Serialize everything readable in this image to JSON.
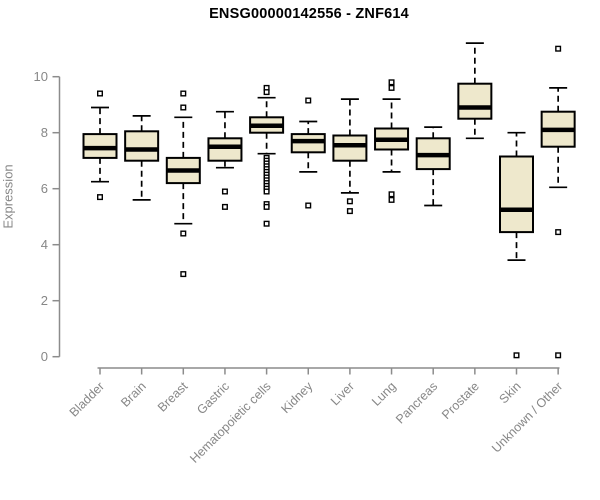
{
  "title": "ENSG00000142556 - ZNF614",
  "colors": {
    "background": "#FFFFFF",
    "box_fill": "#EEE8CC",
    "box_stroke": "#000000",
    "median": "#000000",
    "whisker": "#000000",
    "outlier": "#000000",
    "axis": "#8C8C8C",
    "text": "#878787",
    "title": "#000000"
  },
  "chart_data": {
    "type": "boxplot",
    "title": "ENSG00000142556 - ZNF614",
    "xlabel": "",
    "ylabel": "Expression",
    "ylim": [
      0,
      11.3
    ],
    "yticks": [
      0,
      2,
      4,
      6,
      8,
      10
    ],
    "grid": false,
    "legend": false,
    "marker": "open-square",
    "whisker_style": "dashed",
    "categories": [
      "Bladder",
      "Brain",
      "Breast",
      "Gastric",
      "Hematopoietic cells",
      "Kidney",
      "Liver",
      "Lung",
      "Pancreas",
      "Prostate",
      "Skin",
      "Unknown / Other"
    ],
    "series": [
      {
        "name": "Bladder",
        "whisker_low": 6.25,
        "q1": 7.1,
        "median": 7.45,
        "q3": 7.95,
        "whisker_high": 8.9,
        "outliers": [
          9.4,
          5.7
        ]
      },
      {
        "name": "Brain",
        "whisker_low": 5.6,
        "q1": 7.0,
        "median": 7.4,
        "q3": 8.05,
        "whisker_high": 8.6,
        "outliers": []
      },
      {
        "name": "Breast",
        "whisker_low": 4.75,
        "q1": 6.2,
        "median": 6.65,
        "q3": 7.1,
        "whisker_high": 8.55,
        "outliers": [
          9.4,
          8.9,
          4.4,
          2.95
        ]
      },
      {
        "name": "Gastric",
        "whisker_low": 6.75,
        "q1": 7.0,
        "median": 7.5,
        "q3": 7.8,
        "whisker_high": 8.75,
        "outliers": [
          5.9,
          5.35
        ]
      },
      {
        "name": "Hematopoietic cells",
        "whisker_low": 7.25,
        "q1": 8.0,
        "median": 8.25,
        "q3": 8.55,
        "whisker_high": 9.25,
        "outliers": [
          9.6,
          9.45,
          7.1,
          7.0,
          6.9,
          6.8,
          6.7,
          6.6,
          6.5,
          6.4,
          6.3,
          6.2,
          6.1,
          6.0,
          5.9,
          5.45,
          5.35,
          4.75
        ]
      },
      {
        "name": "Kidney",
        "whisker_low": 6.6,
        "q1": 7.3,
        "median": 7.7,
        "q3": 7.95,
        "whisker_high": 8.4,
        "outliers": [
          9.15,
          5.4
        ]
      },
      {
        "name": "Liver",
        "whisker_low": 5.85,
        "q1": 7.0,
        "median": 7.55,
        "q3": 7.9,
        "whisker_high": 9.2,
        "outliers": [
          5.55,
          5.2
        ]
      },
      {
        "name": "Lung",
        "whisker_low": 6.6,
        "q1": 7.4,
        "median": 7.75,
        "q3": 8.15,
        "whisker_high": 9.2,
        "outliers": [
          9.8,
          9.6,
          5.8,
          5.6
        ]
      },
      {
        "name": "Pancreas",
        "whisker_low": 5.4,
        "q1": 6.7,
        "median": 7.2,
        "q3": 7.8,
        "whisker_high": 8.2,
        "outliers": []
      },
      {
        "name": "Prostate",
        "whisker_low": 7.8,
        "q1": 8.5,
        "median": 8.9,
        "q3": 9.75,
        "whisker_high": 11.2,
        "outliers": []
      },
      {
        "name": "Skin",
        "whisker_low": 3.45,
        "q1": 4.45,
        "median": 5.25,
        "q3": 7.15,
        "whisker_high": 8.0,
        "outliers": [
          0.05
        ]
      },
      {
        "name": "Unknown / Other",
        "whisker_low": 6.05,
        "q1": 7.5,
        "median": 8.1,
        "q3": 8.75,
        "whisker_high": 9.6,
        "outliers": [
          11.0,
          4.45,
          0.05
        ]
      }
    ]
  }
}
